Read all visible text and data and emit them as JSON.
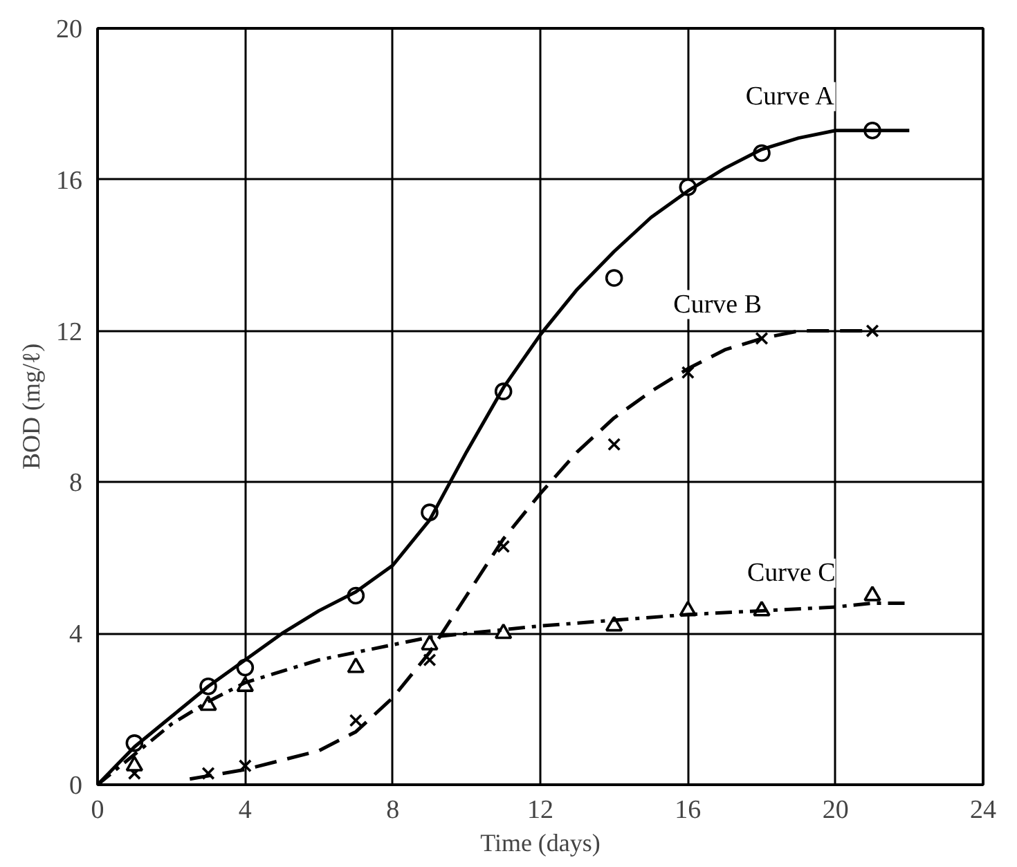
{
  "chart_data": {
    "type": "line",
    "xlabel": "Time (days)",
    "ylabel": "BOD (mg/ℓ)",
    "xlim": [
      0,
      24
    ],
    "ylim": [
      0,
      20
    ],
    "xticks": [
      0,
      4,
      8,
      12,
      16,
      20,
      24
    ],
    "yticks": [
      0,
      4,
      8,
      12,
      16,
      20
    ],
    "grid": true,
    "series": [
      {
        "type": "scatter",
        "marker": "circle",
        "color": "#000000",
        "x": [
          1,
          3,
          4,
          7,
          9,
          11,
          14,
          16,
          18,
          21
        ],
        "values": [
          1.1,
          2.6,
          3.1,
          5.0,
          7.2,
          10.4,
          13.4,
          15.8,
          16.7,
          17.3
        ]
      },
      {
        "type": "scatter",
        "marker": "cross",
        "color": "#000000",
        "x": [
          1,
          3,
          4,
          7,
          9,
          11,
          14,
          16,
          18,
          21
        ],
        "values": [
          0.3,
          0.3,
          0.5,
          1.7,
          3.3,
          6.3,
          9.0,
          10.9,
          11.8,
          12.0
        ]
      },
      {
        "type": "scatter",
        "marker": "triangle",
        "color": "#000000",
        "x": [
          1,
          3,
          4,
          7,
          9,
          11,
          14,
          16,
          18,
          21
        ],
        "values": [
          0.5,
          2.1,
          2.6,
          3.1,
          3.7,
          4.0,
          4.2,
          4.6,
          4.6,
          5.0
        ]
      },
      {
        "name": "Curve A",
        "line_style": "solid",
        "color": "#000000",
        "x": [
          0,
          1,
          2,
          3,
          4,
          5,
          6,
          7,
          8,
          9,
          10,
          11,
          12,
          13,
          14,
          15,
          16,
          17,
          18,
          19,
          20,
          21,
          22
        ],
        "values": [
          0,
          1.0,
          1.8,
          2.6,
          3.3,
          4.0,
          4.6,
          5.1,
          5.8,
          7.0,
          8.8,
          10.5,
          11.9,
          13.1,
          14.1,
          15.0,
          15.7,
          16.3,
          16.8,
          17.1,
          17.3,
          17.3,
          17.3
        ]
      },
      {
        "name": "Curve B",
        "line_style": "dashed",
        "color": "#000000",
        "x": [
          2.5,
          4,
          6,
          7,
          8,
          9,
          10,
          11,
          12,
          13,
          14,
          15,
          16,
          17,
          18,
          19,
          21
        ],
        "values": [
          0.15,
          0.4,
          0.9,
          1.4,
          2.3,
          3.5,
          5.0,
          6.5,
          7.7,
          8.8,
          9.7,
          10.4,
          11.0,
          11.5,
          11.8,
          12.0,
          12.0
        ]
      },
      {
        "name": "Curve C",
        "line_style": "dashdot",
        "color": "#000000",
        "x": [
          0,
          1,
          2,
          3,
          4,
          6,
          8,
          9,
          10,
          12,
          14,
          16,
          18,
          20,
          21,
          22
        ],
        "values": [
          0,
          0.8,
          1.6,
          2.2,
          2.7,
          3.3,
          3.7,
          3.9,
          4.0,
          4.2,
          4.35,
          4.5,
          4.6,
          4.7,
          4.8,
          4.8
        ]
      }
    ]
  }
}
